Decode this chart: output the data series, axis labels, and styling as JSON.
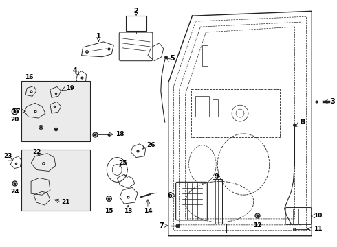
{
  "bg_color": "#ffffff",
  "line_color": "#222222",
  "label_color": "#000000",
  "fig_width": 4.9,
  "fig_height": 3.6,
  "dpi": 100
}
